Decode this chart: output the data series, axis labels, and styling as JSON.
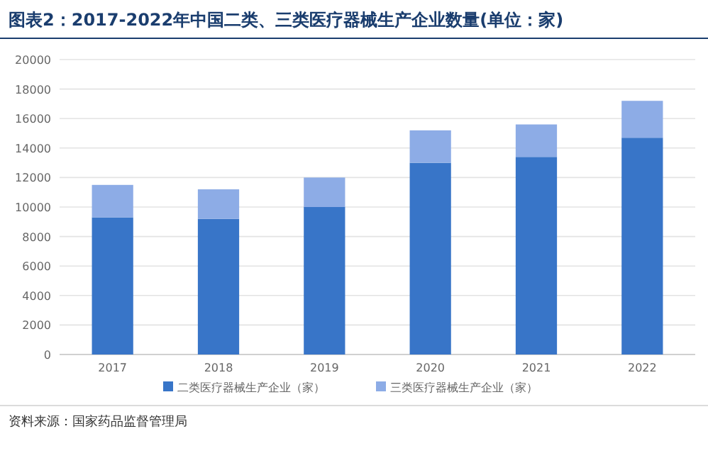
{
  "chart_data": {
    "type": "bar",
    "stacked": true,
    "title": "图表2：2017-2022年中国二类、三类医疗器械生产企业数量(单位：家)",
    "categories": [
      "2017",
      "2018",
      "2019",
      "2020",
      "2021",
      "2022"
    ],
    "series": [
      {
        "name": "二类医疗器械生产企业（家）",
        "color": "#3875c8",
        "values": [
          9300,
          9200,
          10000,
          13000,
          13400,
          14700
        ]
      },
      {
        "name": "三类医疗器械生产企业（家）",
        "color": "#8dace6",
        "values": [
          2200,
          2000,
          2000,
          2200,
          2200,
          2500
        ]
      }
    ],
    "ylim": [
      0,
      20000
    ],
    "yticks": [
      0,
      2000,
      4000,
      6000,
      8000,
      10000,
      12000,
      14000,
      16000,
      18000,
      20000
    ],
    "grid": "y",
    "legend": "bottom",
    "annotations": [
      "资料来源：国家药品监督管理局"
    ]
  }
}
